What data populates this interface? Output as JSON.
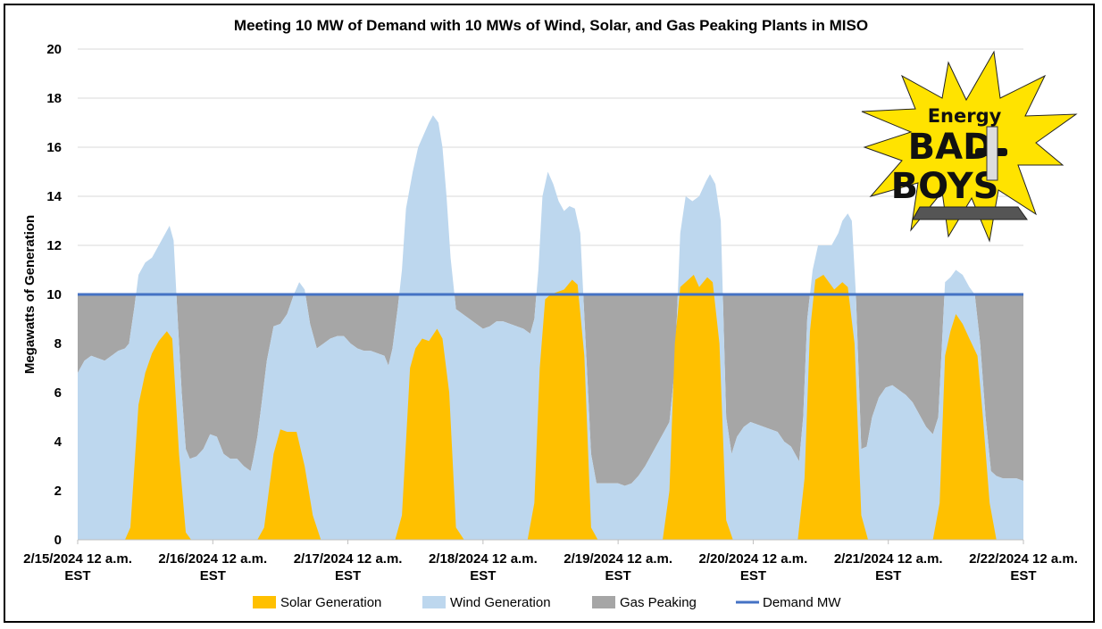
{
  "chart_data": {
    "type": "area",
    "title": "Meeting 10 MW of Demand with 10 MWs of Wind, Solar, and Gas Peaking Plants in MISO",
    "xlabel": "",
    "ylabel": "Megawatts of Generation",
    "ylim": [
      0,
      20
    ],
    "yticks": [
      "0",
      "2",
      "4",
      "6",
      "8",
      "10",
      "12",
      "14",
      "16",
      "18",
      "20"
    ],
    "x_range": [
      0,
      7
    ],
    "x_unit": "days from 2/15/2024 12 a.m. EST",
    "xticks": [
      {
        "line1": "2/15/2024 12 a.m.",
        "line2": "EST"
      },
      {
        "line1": "2/16/2024 12 a.m.",
        "line2": "EST"
      },
      {
        "line1": "2/17/2024 12 a.m.",
        "line2": "EST"
      },
      {
        "line1": "2/18/2024 12 a.m.",
        "line2": "EST"
      },
      {
        "line1": "2/19/2024 12 a.m.",
        "line2": "EST"
      },
      {
        "line1": "2/20/2024 12 a.m.",
        "line2": "EST"
      },
      {
        "line1": "2/21/2024 12 a.m.",
        "line2": "EST"
      },
      {
        "line1": "2/22/2024 12 a.m.",
        "line2": "EST"
      }
    ],
    "series": [
      {
        "name": "Solar Generation",
        "color": "#FFC000",
        "points": [
          [
            0,
            0
          ],
          [
            0.35,
            0
          ],
          [
            0.39,
            0.5
          ],
          [
            0.45,
            5.5
          ],
          [
            0.5,
            6.8
          ],
          [
            0.55,
            7.6
          ],
          [
            0.6,
            8.1
          ],
          [
            0.66,
            8.5
          ],
          [
            0.7,
            8.2
          ],
          [
            0.75,
            3.5
          ],
          [
            0.8,
            0.3
          ],
          [
            0.84,
            0
          ],
          [
            1.33,
            0
          ],
          [
            1.38,
            0.5
          ],
          [
            1.45,
            3.5
          ],
          [
            1.5,
            4.5
          ],
          [
            1.55,
            4.4
          ],
          [
            1.62,
            4.4
          ],
          [
            1.68,
            3
          ],
          [
            1.74,
            1
          ],
          [
            1.8,
            0
          ],
          [
            2.35,
            0
          ],
          [
            2.4,
            1
          ],
          [
            2.46,
            7
          ],
          [
            2.5,
            7.8
          ],
          [
            2.55,
            8.2
          ],
          [
            2.6,
            8.1
          ],
          [
            2.66,
            8.6
          ],
          [
            2.7,
            8.2
          ],
          [
            2.75,
            6
          ],
          [
            2.8,
            0.5
          ],
          [
            2.86,
            0
          ],
          [
            3.33,
            0
          ],
          [
            3.38,
            1.5
          ],
          [
            3.42,
            7
          ],
          [
            3.46,
            9.8
          ],
          [
            3.5,
            10
          ],
          [
            3.55,
            10.1
          ],
          [
            3.6,
            10.2
          ],
          [
            3.66,
            10.6
          ],
          [
            3.7,
            10.4
          ],
          [
            3.75,
            7.5
          ],
          [
            3.8,
            0.5
          ],
          [
            3.85,
            0
          ],
          [
            4.33,
            0
          ],
          [
            4.38,
            2
          ],
          [
            4.42,
            8
          ],
          [
            4.46,
            10.3
          ],
          [
            4.52,
            10.6
          ],
          [
            4.56,
            10.8
          ],
          [
            4.6,
            10.3
          ],
          [
            4.66,
            10.7
          ],
          [
            4.7,
            10.5
          ],
          [
            4.75,
            8
          ],
          [
            4.8,
            0.8
          ],
          [
            4.85,
            0
          ],
          [
            5.33,
            0
          ],
          [
            5.38,
            2.5
          ],
          [
            5.42,
            8.5
          ],
          [
            5.46,
            10.6
          ],
          [
            5.52,
            10.8
          ],
          [
            5.56,
            10.5
          ],
          [
            5.6,
            10.2
          ],
          [
            5.66,
            10.5
          ],
          [
            5.7,
            10.3
          ],
          [
            5.75,
            8
          ],
          [
            5.8,
            1
          ],
          [
            5.85,
            0
          ],
          [
            6.33,
            0
          ],
          [
            6.38,
            1.5
          ],
          [
            6.42,
            7.5
          ],
          [
            6.46,
            8.5
          ],
          [
            6.5,
            9.2
          ],
          [
            6.55,
            8.8
          ],
          [
            6.6,
            8.2
          ],
          [
            6.66,
            7.5
          ],
          [
            6.7,
            5
          ],
          [
            6.75,
            1.5
          ],
          [
            6.8,
            0
          ],
          [
            7,
            0
          ]
        ]
      },
      {
        "name": "Wind Generation",
        "color": "#BDD7EE",
        "points": [
          [
            0,
            6.8
          ],
          [
            0.05,
            7.3
          ],
          [
            0.1,
            7.5
          ],
          [
            0.15,
            7.4
          ],
          [
            0.2,
            7.3
          ],
          [
            0.25,
            7.5
          ],
          [
            0.3,
            7.7
          ],
          [
            0.35,
            7.8
          ],
          [
            0.38,
            8
          ],
          [
            0.42,
            9.5
          ],
          [
            0.45,
            10.8
          ],
          [
            0.5,
            11.3
          ],
          [
            0.55,
            11.5
          ],
          [
            0.6,
            12
          ],
          [
            0.65,
            12.5
          ],
          [
            0.68,
            12.8
          ],
          [
            0.71,
            12.2
          ],
          [
            0.74,
            9
          ],
          [
            0.77,
            6
          ],
          [
            0.8,
            3.7
          ],
          [
            0.83,
            3.3
          ],
          [
            0.88,
            3.4
          ],
          [
            0.93,
            3.7
          ],
          [
            0.98,
            4.3
          ],
          [
            1.03,
            4.2
          ],
          [
            1.08,
            3.5
          ],
          [
            1.13,
            3.3
          ],
          [
            1.18,
            3.3
          ],
          [
            1.23,
            3
          ],
          [
            1.28,
            2.8
          ],
          [
            1.3,
            3.3
          ],
          [
            1.33,
            4.2
          ],
          [
            1.36,
            5.5
          ],
          [
            1.4,
            7.3
          ],
          [
            1.45,
            8.7
          ],
          [
            1.5,
            8.8
          ],
          [
            1.55,
            9.2
          ],
          [
            1.6,
            10
          ],
          [
            1.64,
            10.5
          ],
          [
            1.68,
            10.2
          ],
          [
            1.72,
            8.8
          ],
          [
            1.77,
            7.8
          ],
          [
            1.82,
            8
          ],
          [
            1.87,
            8.2
          ],
          [
            1.92,
            8.3
          ],
          [
            1.97,
            8.3
          ],
          [
            2.02,
            8
          ],
          [
            2.07,
            7.8
          ],
          [
            2.12,
            7.7
          ],
          [
            2.17,
            7.7
          ],
          [
            2.22,
            7.6
          ],
          [
            2.27,
            7.5
          ],
          [
            2.3,
            7.1
          ],
          [
            2.33,
            7.8
          ],
          [
            2.37,
            9.5
          ],
          [
            2.4,
            11
          ],
          [
            2.43,
            13.5
          ],
          [
            2.48,
            15
          ],
          [
            2.52,
            16
          ],
          [
            2.56,
            16.5
          ],
          [
            2.6,
            17
          ],
          [
            2.63,
            17.3
          ],
          [
            2.67,
            17
          ],
          [
            2.7,
            16
          ],
          [
            2.73,
            14
          ],
          [
            2.76,
            11.5
          ],
          [
            2.8,
            9.4
          ],
          [
            2.85,
            9.2
          ],
          [
            2.9,
            9
          ],
          [
            2.95,
            8.8
          ],
          [
            3,
            8.6
          ],
          [
            3.05,
            8.7
          ],
          [
            3.1,
            8.9
          ],
          [
            3.15,
            8.9
          ],
          [
            3.2,
            8.8
          ],
          [
            3.25,
            8.7
          ],
          [
            3.3,
            8.6
          ],
          [
            3.35,
            8.4
          ],
          [
            3.38,
            9
          ],
          [
            3.41,
            11
          ],
          [
            3.44,
            14
          ],
          [
            3.48,
            15
          ],
          [
            3.52,
            14.5
          ],
          [
            3.56,
            13.8
          ],
          [
            3.6,
            13.4
          ],
          [
            3.64,
            13.6
          ],
          [
            3.68,
            13.5
          ],
          [
            3.72,
            12.5
          ],
          [
            3.76,
            8
          ],
          [
            3.8,
            3.5
          ],
          [
            3.84,
            2.3
          ],
          [
            3.9,
            2.3
          ],
          [
            3.95,
            2.3
          ],
          [
            4,
            2.3
          ],
          [
            4.05,
            2.2
          ],
          [
            4.1,
            2.3
          ],
          [
            4.15,
            2.6
          ],
          [
            4.2,
            3
          ],
          [
            4.25,
            3.5
          ],
          [
            4.3,
            4
          ],
          [
            4.35,
            4.5
          ],
          [
            4.38,
            4.8
          ],
          [
            4.42,
            7
          ],
          [
            4.46,
            12.5
          ],
          [
            4.5,
            14
          ],
          [
            4.55,
            13.8
          ],
          [
            4.6,
            14
          ],
          [
            4.65,
            14.6
          ],
          [
            4.68,
            14.9
          ],
          [
            4.72,
            14.5
          ],
          [
            4.76,
            13
          ],
          [
            4.8,
            5
          ],
          [
            4.84,
            3.5
          ],
          [
            4.88,
            4.2
          ],
          [
            4.93,
            4.6
          ],
          [
            4.98,
            4.8
          ],
          [
            5.03,
            4.7
          ],
          [
            5.08,
            4.6
          ],
          [
            5.13,
            4.5
          ],
          [
            5.18,
            4.4
          ],
          [
            5.23,
            4
          ],
          [
            5.28,
            3.8
          ],
          [
            5.31,
            3.5
          ],
          [
            5.34,
            3.2
          ],
          [
            5.37,
            5
          ],
          [
            5.4,
            9
          ],
          [
            5.44,
            11
          ],
          [
            5.48,
            12
          ],
          [
            5.53,
            12
          ],
          [
            5.58,
            12
          ],
          [
            5.63,
            12.5
          ],
          [
            5.66,
            13
          ],
          [
            5.7,
            13.3
          ],
          [
            5.73,
            13
          ],
          [
            5.76,
            10
          ],
          [
            5.8,
            3.7
          ],
          [
            5.84,
            3.8
          ],
          [
            5.88,
            5
          ],
          [
            5.93,
            5.8
          ],
          [
            5.98,
            6.2
          ],
          [
            6.03,
            6.3
          ],
          [
            6.08,
            6.1
          ],
          [
            6.13,
            5.9
          ],
          [
            6.18,
            5.6
          ],
          [
            6.23,
            5.1
          ],
          [
            6.28,
            4.6
          ],
          [
            6.33,
            4.3
          ],
          [
            6.37,
            5
          ],
          [
            6.42,
            10.5
          ],
          [
            6.46,
            10.7
          ],
          [
            6.5,
            11
          ],
          [
            6.55,
            10.8
          ],
          [
            6.6,
            10.3
          ],
          [
            6.64,
            10
          ],
          [
            6.68,
            8
          ],
          [
            6.72,
            5
          ],
          [
            6.76,
            2.8
          ],
          [
            6.8,
            2.6
          ],
          [
            6.85,
            2.5
          ],
          [
            6.9,
            2.5
          ],
          [
            6.95,
            2.5
          ],
          [
            7,
            2.4
          ]
        ]
      },
      {
        "name": "Gas Peaking",
        "color": "#A6A6A6",
        "stack_to": 10
      },
      {
        "name": "Demand MW",
        "color": "#4472C4",
        "constant": 10
      }
    ],
    "legend_position": "bottom"
  },
  "logo": {
    "line1": "Energy",
    "line2": "BAD",
    "line3": "BOYS"
  }
}
